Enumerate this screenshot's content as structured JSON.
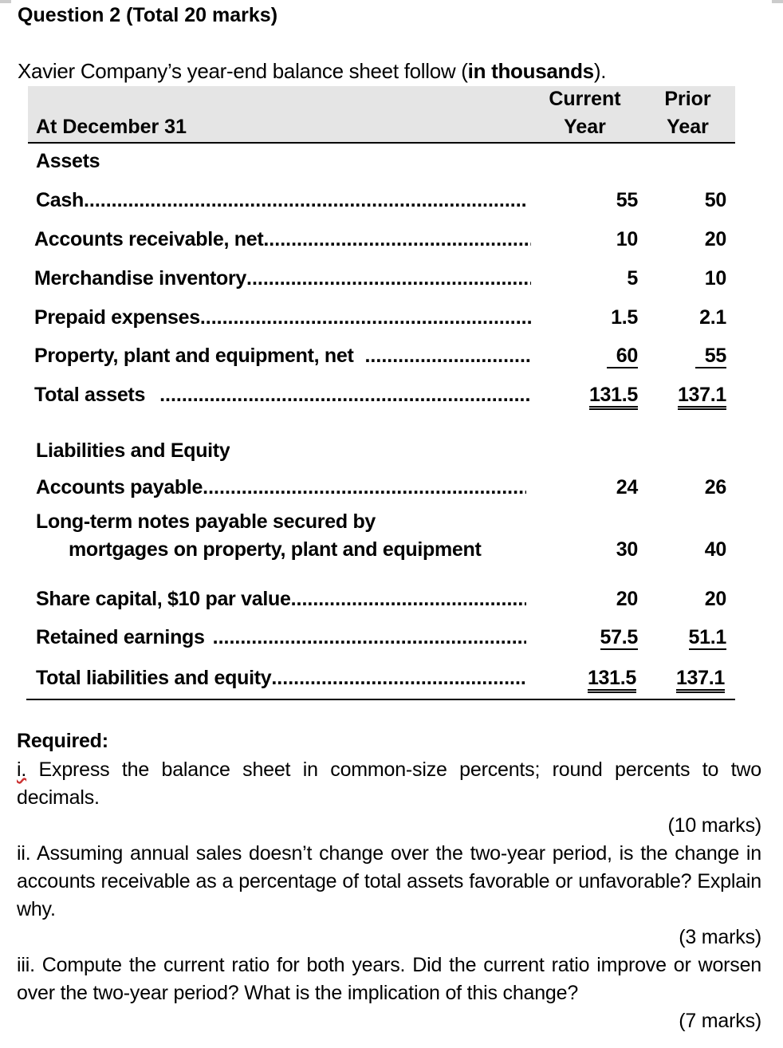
{
  "question": {
    "title": "Question 2 (Total 20 marks)",
    "intro_prefix": "Xavier Company’s year-end balance sheet follow (",
    "intro_bold": "in thousands",
    "intro_suffix": ")."
  },
  "table": {
    "header": {
      "label": "At December 31",
      "current_line1": "Current",
      "current_line2": "Year",
      "prior_line1": "Prior",
      "prior_line2": "Year"
    },
    "assets_heading": "Assets",
    "assets": [
      {
        "label": "Cash",
        "current": "55",
        "prior": "50"
      },
      {
        "label": "Accounts receivable, net ",
        "current": "10",
        "prior": "20"
      },
      {
        "label": "Merchandise inventory",
        "current": "5",
        "prior": "10"
      },
      {
        "label": "Prepaid expenses ",
        "current": "1.5",
        "prior": "2.1"
      },
      {
        "label": "Property, plant and equipment, net ",
        "current": "60",
        "prior": "55"
      },
      {
        "label": "Total assets ",
        "current": "131.5",
        "prior": "137.1"
      }
    ],
    "liabilities_heading": "Liabilities and Equity",
    "liabilities": [
      {
        "label": "Accounts payable",
        "current": "24",
        "prior": "26"
      },
      {
        "label": "Long-term notes payable secured by",
        "label_line2": "mortgages on property, plant and equipment",
        "current": "30",
        "prior": "40"
      },
      {
        "label": "Share capital, $10 par value ",
        "current": "20",
        "prior": "20"
      },
      {
        "label": "Retained earnings ",
        "current": "57.5",
        "prior": "51.1"
      },
      {
        "label": "Total liabilities and equity",
        "current": "131.5",
        "prior": "137.1"
      }
    ]
  },
  "required": {
    "heading": "Required:",
    "parts": [
      {
        "number": "i.",
        "text": " Express the balance sheet in common-size percents; round percents to two decimals.",
        "marks": "(10 marks)"
      },
      {
        "number": "ii.",
        "text": " Assuming annual sales doesn’t change over the two-year period, is the change in accounts receivable as a percentage of total assets favorable or unfavorable? Explain why.",
        "marks": "(3 marks)"
      },
      {
        "number": "iii.",
        "text": " Compute the current ratio for both years. Did the current ratio improve or worsen over the two-year period? What is the implication of this change?",
        "marks": "(7 marks)"
      }
    ]
  }
}
